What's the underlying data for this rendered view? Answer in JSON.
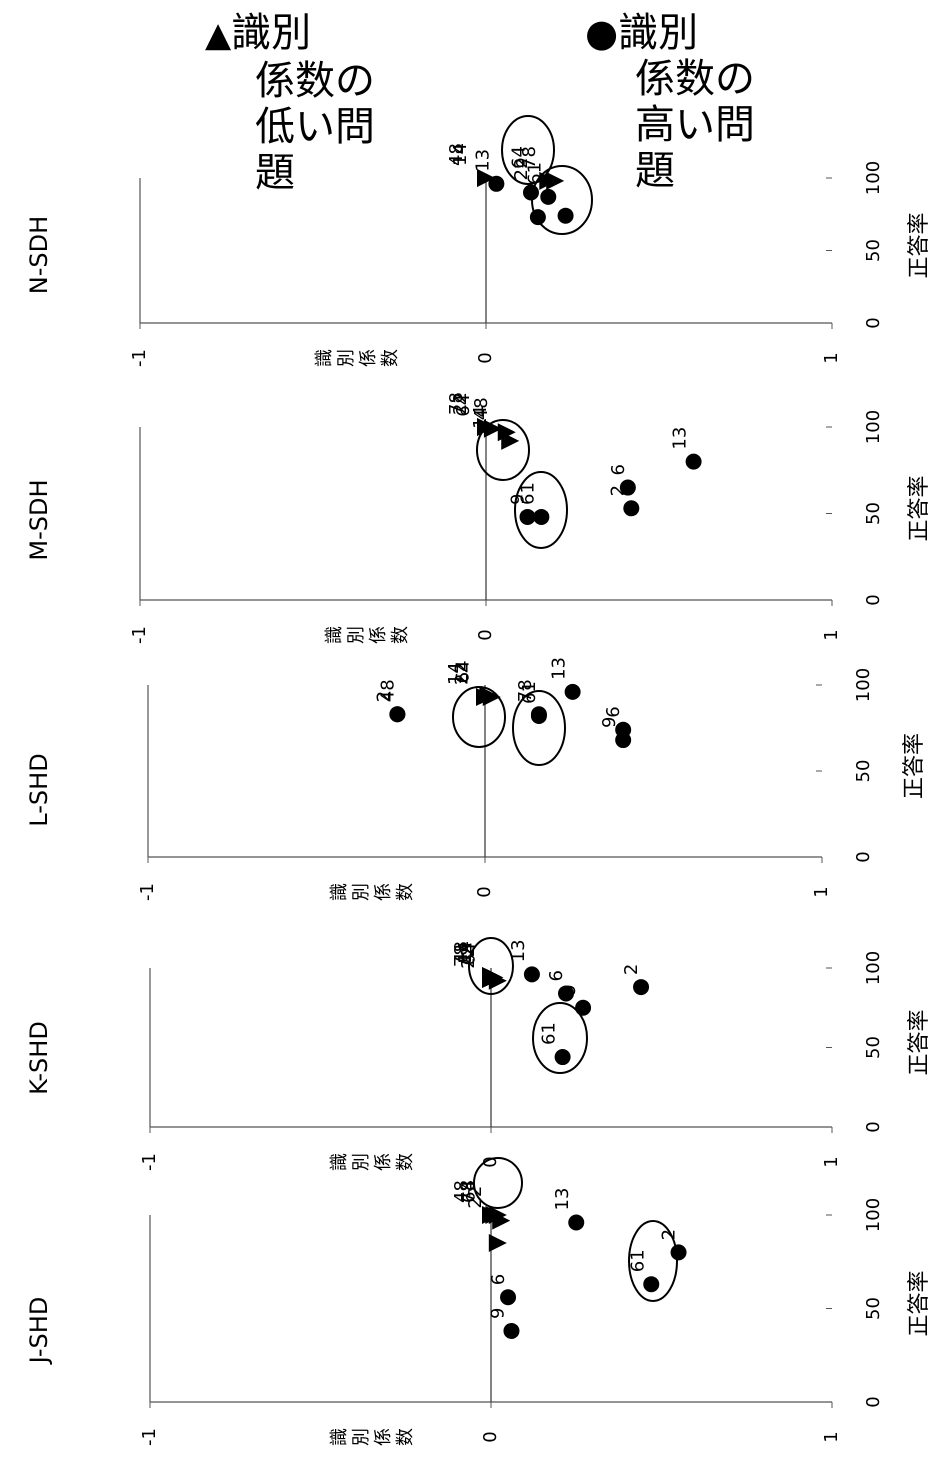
{
  "legend": {
    "low": {
      "symbol": "▲",
      "lines": [
        "識別",
        "係数の",
        "低い問",
        "題"
      ]
    },
    "high": {
      "symbol": "●",
      "lines": [
        "識別",
        "係数の",
        "高い問",
        "題"
      ]
    }
  },
  "chart_data": [
    {
      "type": "scatter",
      "title": "N-SDH",
      "xlabel": "正答率",
      "ylabel": "識別係数",
      "xlim": [
        0,
        100
      ],
      "ylim": [
        -1,
        1
      ],
      "x_ticks": [
        "0",
        "50",
        "100"
      ],
      "y_ticks": [
        "-1",
        "0",
        "1"
      ],
      "grid": false,
      "series": [
        {
          "name": "識別係数の低い問題",
          "marker": "triangle",
          "points": [
            {
              "x": 100,
              "y": 0.0,
              "label": "48"
            },
            {
              "x": 100,
              "y": 0.0,
              "label": "14"
            },
            {
              "x": 98,
              "y": 0.18,
              "label": "64"
            },
            {
              "x": 98,
              "y": 0.2,
              "label": "78"
            }
          ]
        },
        {
          "name": "識別係数の高い問題",
          "marker": "circle",
          "points": [
            {
              "x": 96,
              "y": 0.03,
              "label": "13"
            },
            {
              "x": 90,
              "y": 0.13,
              "label": "22"
            },
            {
              "x": 87,
              "y": 0.18,
              "label": "61"
            },
            {
              "x": 73,
              "y": 0.15,
              "label": ""
            },
            {
              "x": 74,
              "y": 0.23,
              "label": ""
            }
          ]
        }
      ],
      "highlight_circles": 2
    },
    {
      "type": "scatter",
      "title": "M-SDH",
      "xlabel": "正答率",
      "ylabel": "識別係数",
      "xlim": [
        0,
        100
      ],
      "ylim": [
        -1,
        1
      ],
      "x_ticks": [
        "0",
        "50",
        "100"
      ],
      "y_ticks": [
        "-1",
        "0",
        "1"
      ],
      "grid": false,
      "series": [
        {
          "name": "識別係数の低い問題",
          "marker": "triangle",
          "points": [
            {
              "x": 100,
              "y": 0.0,
              "label": "78"
            },
            {
              "x": 100,
              "y": 0.0,
              "label": "22"
            },
            {
              "x": 99,
              "y": 0.02,
              "label": "64"
            },
            {
              "x": 97,
              "y": 0.06,
              "label": "48"
            },
            {
              "x": 92,
              "y": 0.07,
              "label": "14"
            }
          ]
        },
        {
          "name": "識別係数の高い問題",
          "marker": "circle",
          "points": [
            {
              "x": 80,
              "y": 0.6,
              "label": "13"
            },
            {
              "x": 65,
              "y": 0.41,
              "label": "6"
            },
            {
              "x": 53,
              "y": 0.42,
              "label": "2"
            },
            {
              "x": 48,
              "y": 0.12,
              "label": "9"
            },
            {
              "x": 48,
              "y": 0.16,
              "label": "61"
            }
          ]
        }
      ],
      "highlight_circles": 2
    },
    {
      "type": "scatter",
      "title": "L-SHD",
      "xlabel": "正答率",
      "ylabel": "識別係数",
      "xlim": [
        0,
        100
      ],
      "ylim": [
        -1,
        1
      ],
      "x_ticks": [
        "0",
        "50",
        "100"
      ],
      "y_ticks": [
        "-1",
        "0",
        "1"
      ],
      "grid": false,
      "series": [
        {
          "name": "識別係数の低い問題",
          "marker": "triangle",
          "points": [
            {
              "x": 93,
              "y": 0.0,
              "label": "14"
            },
            {
              "x": 94,
              "y": 0.01,
              "label": "64"
            },
            {
              "x": 93,
              "y": 0.02,
              "label": "22"
            }
          ]
        },
        {
          "name": "識別係数の高い問題",
          "marker": "circle",
          "points": [
            {
              "x": 83,
              "y": -0.26,
              "label": "2"
            },
            {
              "x": 83,
              "y": -0.26,
              "label": "48"
            },
            {
              "x": 83,
              "y": 0.16,
              "label": "78"
            },
            {
              "x": 82,
              "y": 0.16,
              "label": "61"
            },
            {
              "x": 96,
              "y": 0.26,
              "label": "13"
            },
            {
              "x": 74,
              "y": 0.41,
              "label": "6"
            },
            {
              "x": 68,
              "y": 0.41,
              "label": "9"
            }
          ]
        }
      ],
      "highlight_circles": 2
    },
    {
      "type": "scatter",
      "title": "K-SHD",
      "xlabel": "正答率",
      "ylabel": "識別係数",
      "xlim": [
        0,
        100
      ],
      "ylim": [
        -1,
        1
      ],
      "x_ticks": [
        "0",
        "50",
        "100"
      ],
      "y_ticks": [
        "-1",
        "0",
        "1"
      ],
      "grid": false,
      "series": [
        {
          "name": "識別係数の低い問題",
          "marker": "triangle",
          "points": [
            {
              "x": 95,
              "y": 0.0,
              "label": "48"
            },
            {
              "x": 95,
              "y": 0.0,
              "label": "14"
            },
            {
              "x": 93,
              "y": 0.0,
              "label": "78"
            },
            {
              "x": 94,
              "y": 0.01,
              "label": "64"
            },
            {
              "x": 92,
              "y": 0.02,
              "label": "22"
            }
          ]
        },
        {
          "name": "識別係数の高い問題",
          "marker": "circle",
          "points": [
            {
              "x": 96,
              "y": 0.12,
              "label": "13"
            },
            {
              "x": 84,
              "y": 0.22,
              "label": "6"
            },
            {
              "x": 75,
              "y": 0.27,
              "label": "9"
            },
            {
              "x": 88,
              "y": 0.44,
              "label": "2"
            },
            {
              "x": 44,
              "y": 0.21,
              "label": "61"
            }
          ]
        }
      ],
      "highlight_circles": 2
    },
    {
      "type": "scatter",
      "title": "J-SHD",
      "xlabel": "正答率",
      "ylabel": "識別係数",
      "xlim": [
        0,
        100
      ],
      "ylim": [
        -1,
        1
      ],
      "x_ticks": [
        "0",
        "50",
        "100"
      ],
      "y_ticks": [
        "-1",
        "0",
        "1"
      ],
      "grid": false,
      "series": [
        {
          "name": "識別係数の低い問題",
          "marker": "triangle",
          "points": [
            {
              "x": 100,
              "y": 0.0,
              "label": "48"
            },
            {
              "x": 100,
              "y": 0.01,
              "label": "64"
            },
            {
              "x": 100,
              "y": 0.02,
              "label": "78"
            },
            {
              "x": 97,
              "y": 0.03,
              "label": "22"
            },
            {
              "x": 85,
              "y": 0.02,
              "label": ""
            }
          ]
        },
        {
          "name": "識別係数の高い問題",
          "marker": "circle",
          "points": [
            {
              "x": 96,
              "y": 0.25,
              "label": "13"
            },
            {
              "x": 80,
              "y": 0.55,
              "label": "2"
            },
            {
              "x": 63,
              "y": 0.47,
              "label": "61"
            },
            {
              "x": 56,
              "y": 0.05,
              "label": "6"
            },
            {
              "x": 38,
              "y": 0.06,
              "label": "9"
            }
          ]
        }
      ],
      "highlight_circles": 1
    }
  ]
}
